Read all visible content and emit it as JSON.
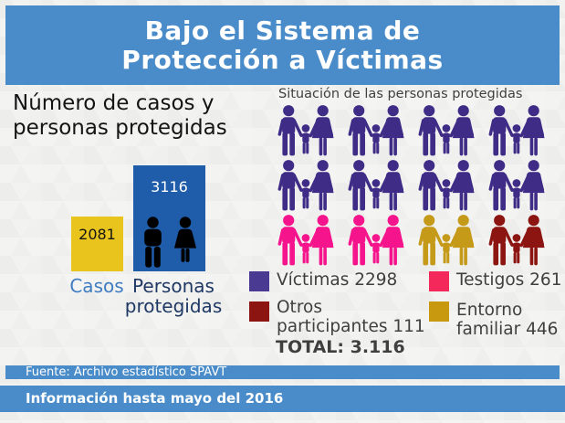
{
  "colors": {
    "accent_blue": "#4A8CC9",
    "background_gray": "#F1F1F0",
    "casos_yellow": "#E8C41D",
    "personas_blue": "#1F5CA9",
    "casos_label_blue": "#3F7CC1",
    "personas_label_navy": "#1F3864",
    "dark_text": "#3F3F3F",
    "white": "#FFFFFF"
  },
  "header": {
    "title_line1": "Bajo el Sistema de",
    "title_line2": "Protección a Víctimas"
  },
  "bar_section": {
    "title_line1": "Número de casos y",
    "title_line2": "personas protegidas",
    "bars": [
      {
        "label": "Casos",
        "value": "2081",
        "color": "#E8C41D"
      },
      {
        "label_line1": "Personas",
        "label_line2": "protegidas",
        "value": "3116",
        "color": "#1F5CA9"
      }
    ]
  },
  "pictogram_section": {
    "title": "Situación de las personas protegidas",
    "figure_colors": {
      "victimas": "#3E2C86",
      "testigos": "#F5148C",
      "otros": "#8C1512",
      "entorno": "#C49A18"
    },
    "rows": [
      [
        "victimas",
        "victimas",
        "victimas",
        "victimas"
      ],
      [
        "victimas",
        "victimas",
        "victimas",
        "victimas"
      ],
      [
        "testigos",
        "testigos",
        "entorno",
        "otros"
      ]
    ]
  },
  "legend": {
    "items": [
      {
        "key": "victimas",
        "label": "Víctimas 2298",
        "color": "#4B3A92"
      },
      {
        "key": "testigos",
        "label": "Testigos 261",
        "color": "#F4285A"
      },
      {
        "key": "otros",
        "label_line1": "Otros",
        "label_line2": "participantes 111",
        "color": "#8C1512"
      },
      {
        "key": "entorno",
        "label_line1": "Entorno",
        "label_line2": "familiar 446",
        "color": "#C8980E"
      }
    ],
    "total": "TOTAL: 3.116"
  },
  "footer": {
    "source": "Fuente: Archivo estadístico SPAVT",
    "info": "Información hasta mayo del 2016"
  },
  "chart_data": [
    {
      "type": "bar",
      "title": "Número de casos y personas protegidas",
      "categories": [
        "Casos",
        "Personas protegidas"
      ],
      "values": [
        2081,
        3116
      ],
      "colors": [
        "#E8C41D",
        "#1F5CA9"
      ],
      "data_labels": true,
      "grid": false,
      "note": "bar heights drawn non-proportionally in source infographic"
    },
    {
      "type": "pictogram",
      "title": "Situación de las personas protegidas",
      "categories": [
        "Víctimas",
        "Testigos",
        "Otros participantes",
        "Entorno familiar"
      ],
      "values": [
        2298,
        261,
        111,
        446
      ],
      "colors": [
        "#3E2C86",
        "#F5148C",
        "#8C1512",
        "#C49A18"
      ],
      "total": 3116,
      "total_label": "TOTAL: 3.116",
      "units_per_icon_group": "family of 3 figures",
      "icon_groups_per_row": 4,
      "rows_of_icons": 3,
      "legend_position": "bottom"
    }
  ]
}
